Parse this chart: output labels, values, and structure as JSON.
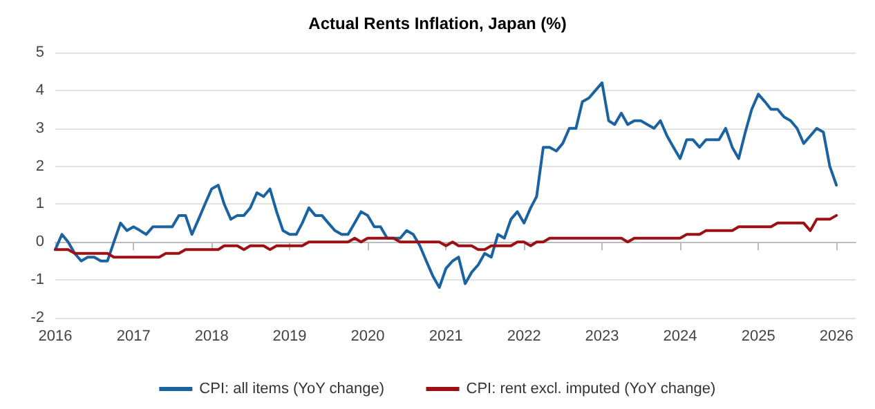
{
  "chart_data": {
    "type": "line",
    "title": "Actual Rents Inflation, Japan (%)",
    "x": [
      "2016-01",
      "2016-02",
      "2016-03",
      "2016-04",
      "2016-05",
      "2016-06",
      "2016-07",
      "2016-08",
      "2016-09",
      "2016-10",
      "2016-11",
      "2016-12",
      "2017-01",
      "2017-02",
      "2017-03",
      "2017-04",
      "2017-05",
      "2017-06",
      "2017-07",
      "2017-08",
      "2017-09",
      "2017-10",
      "2017-11",
      "2017-12",
      "2018-01",
      "2018-02",
      "2018-03",
      "2018-04",
      "2018-05",
      "2018-06",
      "2018-07",
      "2018-08",
      "2018-09",
      "2018-10",
      "2018-11",
      "2018-12",
      "2019-01",
      "2019-02",
      "2019-03",
      "2019-04",
      "2019-05",
      "2019-06",
      "2019-07",
      "2019-08",
      "2019-09",
      "2019-10",
      "2019-11",
      "2019-12",
      "2020-01",
      "2020-02",
      "2020-03",
      "2020-04",
      "2020-05",
      "2020-06",
      "2020-07",
      "2020-08",
      "2020-09",
      "2020-10",
      "2020-11",
      "2020-12",
      "2021-01",
      "2021-02",
      "2021-03",
      "2021-04",
      "2021-05",
      "2021-06",
      "2021-07",
      "2021-08",
      "2021-09",
      "2021-10",
      "2021-11",
      "2021-12",
      "2022-01",
      "2022-02",
      "2022-03",
      "2022-04",
      "2022-05",
      "2022-06",
      "2022-07",
      "2022-08",
      "2022-09",
      "2022-10",
      "2022-11",
      "2022-12",
      "2023-01",
      "2023-02",
      "2023-03",
      "2023-04",
      "2023-05",
      "2023-06",
      "2023-07",
      "2023-08",
      "2023-09",
      "2023-10",
      "2023-11",
      "2023-12",
      "2024-01",
      "2024-02",
      "2024-03",
      "2024-04",
      "2024-05",
      "2024-06",
      "2024-07",
      "2024-08",
      "2024-09",
      "2024-10",
      "2024-11",
      "2024-12",
      "2025-01",
      "2025-02",
      "2025-03",
      "2025-04",
      "2025-05",
      "2025-06",
      "2025-07",
      "2025-08",
      "2025-09",
      "2025-10",
      "2025-11",
      "2025-12",
      "2026-01"
    ],
    "series": [
      {
        "name": "CPI: all items (YoY change)",
        "color": "#1b62a0",
        "values": [
          -0.2,
          0.2,
          0,
          -0.3,
          -0.5,
          -0.4,
          -0.4,
          -0.5,
          -0.5,
          0,
          0.5,
          0.3,
          0.4,
          0.3,
          0.2,
          0.4,
          0.4,
          0.4,
          0.4,
          0.7,
          0.7,
          0.2,
          0.6,
          1.0,
          1.4,
          1.5,
          1.0,
          0.6,
          0.7,
          0.7,
          0.9,
          1.3,
          1.2,
          1.4,
          0.8,
          0.3,
          0.2,
          0.2,
          0.5,
          0.9,
          0.7,
          0.7,
          0.5,
          0.3,
          0.2,
          0.2,
          0.5,
          0.8,
          0.7,
          0.4,
          0.4,
          0.1,
          0.1,
          0.1,
          0.3,
          0.2,
          -0.1,
          -0.5,
          -0.9,
          -1.2,
          -0.7,
          -0.5,
          -0.4,
          -1.1,
          -0.8,
          -0.6,
          -0.3,
          -0.4,
          0.2,
          0.1,
          0.6,
          0.8,
          0.5,
          0.9,
          1.2,
          2.5,
          2.5,
          2.4,
          2.6,
          3.0,
          3.0,
          3.7,
          3.8,
          4.0,
          4.2,
          3.2,
          3.1,
          3.4,
          3.1,
          3.2,
          3.2,
          3.1,
          3.0,
          3.2,
          2.8,
          2.5,
          2.2,
          2.7,
          2.7,
          2.5,
          2.7,
          2.7,
          2.7,
          3.0,
          2.5,
          2.2,
          2.9,
          3.5,
          3.9,
          3.7,
          3.5,
          3.5,
          3.3,
          3.2,
          3.0,
          2.6,
          2.8,
          3.0,
          2.9,
          2.0,
          1.5
        ]
      },
      {
        "name": "CPI: rent excl. imputed (YoY change)",
        "color": "#9c0f14",
        "values": [
          -0.2,
          -0.2,
          -0.2,
          -0.3,
          -0.3,
          -0.3,
          -0.3,
          -0.3,
          -0.3,
          -0.4,
          -0.4,
          -0.4,
          -0.4,
          -0.4,
          -0.4,
          -0.4,
          -0.4,
          -0.3,
          -0.3,
          -0.3,
          -0.2,
          -0.2,
          -0.2,
          -0.2,
          -0.2,
          -0.2,
          -0.1,
          -0.1,
          -0.1,
          -0.2,
          -0.1,
          -0.1,
          -0.1,
          -0.2,
          -0.1,
          -0.1,
          -0.1,
          -0.1,
          -0.1,
          0,
          0,
          0,
          0,
          0,
          0,
          0,
          0.1,
          0,
          0.1,
          0.1,
          0.1,
          0.1,
          0.1,
          0,
          0,
          0,
          0,
          0,
          0,
          0,
          -0.1,
          0,
          -0.1,
          -0.1,
          -0.1,
          -0.2,
          -0.2,
          -0.1,
          -0.1,
          -0.1,
          -0.1,
          0,
          0,
          -0.1,
          0,
          0,
          0.1,
          0.1,
          0.1,
          0.1,
          0.1,
          0.1,
          0.1,
          0.1,
          0.1,
          0.1,
          0.1,
          0.1,
          0,
          0.1,
          0.1,
          0.1,
          0.1,
          0.1,
          0.1,
          0.1,
          0.1,
          0.2,
          0.2,
          0.2,
          0.3,
          0.3,
          0.3,
          0.3,
          0.3,
          0.4,
          0.4,
          0.4,
          0.4,
          0.4,
          0.4,
          0.5,
          0.5,
          0.5,
          0.5,
          0.5,
          0.3,
          0.6,
          0.6,
          0.6,
          0.7
        ]
      }
    ],
    "xlim": [
      "2016-01",
      "2026-04"
    ],
    "xticks": [
      "2016",
      "2017",
      "2018",
      "2019",
      "2020",
      "2021",
      "2022",
      "2023",
      "2024",
      "2025",
      "2026"
    ],
    "ylim": [
      -2,
      5
    ],
    "yticks": [
      -2,
      -1,
      0,
      1,
      2,
      3,
      4,
      5
    ],
    "grid": "y",
    "legend": "bottom",
    "marker": "none",
    "line_style": "solid"
  }
}
